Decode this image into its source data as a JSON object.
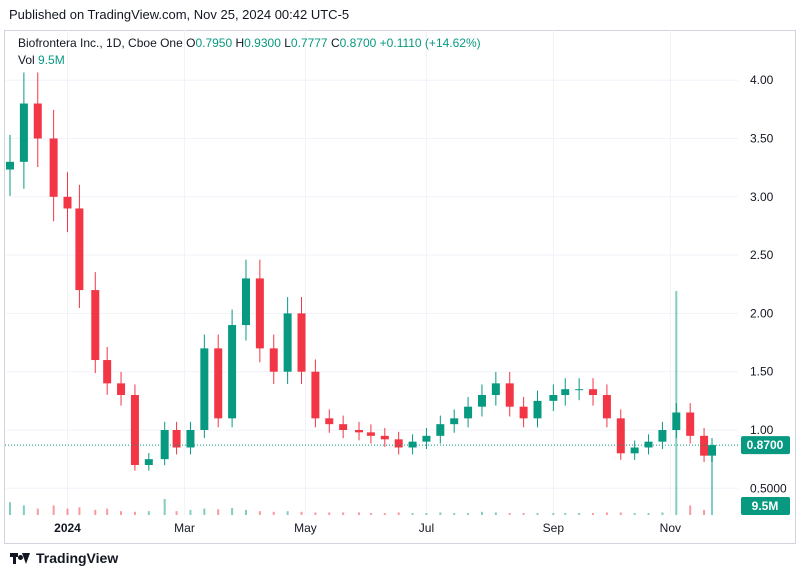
{
  "header": {
    "published": "Published on TradingView.com, Nov 25, 2024 00:42 UTC-5"
  },
  "legend": {
    "symbol": "Biofrontera Inc., 1D, Cboe One",
    "open_label": "O",
    "open": "0.7950",
    "high_label": "H",
    "high": "0.9300",
    "low_label": "L",
    "low": "0.7777",
    "close_label": "C",
    "close": "0.8700",
    "change": "+0.1110 (+14.62%)",
    "vol_label": "Vol",
    "vol": "9.5M"
  },
  "badges": {
    "price": "0.8700",
    "volume": "9.5M"
  },
  "footer": {
    "brand": "TradingView"
  },
  "colors": {
    "up": "#089981",
    "down": "#f23645",
    "grid": "#f0f3fa",
    "badge": "#089981"
  },
  "chart_data": {
    "type": "candlestick",
    "y_ticks": [
      "4.00",
      "3.50",
      "3.00",
      "2.50",
      "2.00",
      "1.50",
      "1.00",
      "0.5000"
    ],
    "x_ticks": [
      "2024",
      "Mar",
      "May",
      "Jul",
      "Sep",
      "Nov"
    ],
    "ylim": [
      0.25,
      4.1
    ],
    "last_close": 0.87,
    "x": [
      "2023-12-04",
      "2023-12-11",
      "2023-12-18",
      "2023-12-26",
      "2024-01-02",
      "2024-01-08",
      "2024-01-16",
      "2024-01-22",
      "2024-01-29",
      "2024-02-05",
      "2024-02-12",
      "2024-02-20",
      "2024-02-26",
      "2024-03-04",
      "2024-03-11",
      "2024-03-18",
      "2024-03-25",
      "2024-04-01",
      "2024-04-08",
      "2024-04-15",
      "2024-04-22",
      "2024-04-29",
      "2024-05-06",
      "2024-05-13",
      "2024-05-20",
      "2024-05-28",
      "2024-06-03",
      "2024-06-10",
      "2024-06-17",
      "2024-06-24",
      "2024-07-01",
      "2024-07-08",
      "2024-07-15",
      "2024-07-22",
      "2024-07-29",
      "2024-08-05",
      "2024-08-12",
      "2024-08-19",
      "2024-08-26",
      "2024-09-03",
      "2024-09-09",
      "2024-09-16",
      "2024-09-23",
      "2024-09-30",
      "2024-10-07",
      "2024-10-14",
      "2024-10-21",
      "2024-10-28",
      "2024-11-04",
      "2024-11-11",
      "2024-11-18",
      "2024-11-22"
    ],
    "close": [
      3.3,
      3.8,
      3.5,
      3.0,
      2.9,
      2.2,
      1.6,
      1.4,
      1.3,
      0.7,
      0.75,
      1.0,
      0.85,
      1.0,
      1.7,
      1.1,
      1.9,
      2.3,
      1.7,
      1.5,
      2.0,
      1.5,
      1.1,
      1.05,
      1.0,
      0.98,
      0.95,
      0.92,
      0.85,
      0.9,
      0.95,
      1.05,
      1.1,
      1.2,
      1.3,
      1.4,
      1.2,
      1.1,
      1.25,
      1.3,
      1.35,
      1.35,
      1.3,
      1.1,
      0.8,
      0.85,
      0.9,
      1.0,
      1.15,
      0.95,
      0.78,
      0.87
    ],
    "volume_m": [
      2,
      1.5,
      1,
      1.5,
      1,
      1.2,
      0.8,
      1,
      0.6,
      0.5,
      0.6,
      2.5,
      0.6,
      0.8,
      1,
      0.9,
      1.1,
      0.8,
      0.6,
      0.5,
      0.6,
      0.5,
      0.4,
      0.4,
      0.4,
      0.4,
      0.3,
      0.3,
      0.4,
      0.3,
      0.3,
      0.4,
      0.3,
      0.3,
      0.5,
      0.4,
      0.3,
      0.3,
      0.3,
      0.3,
      0.3,
      0.3,
      0.3,
      0.4,
      0.4,
      0.3,
      0.3,
      0.4,
      35,
      1.5,
      0.8,
      9.5
    ]
  }
}
